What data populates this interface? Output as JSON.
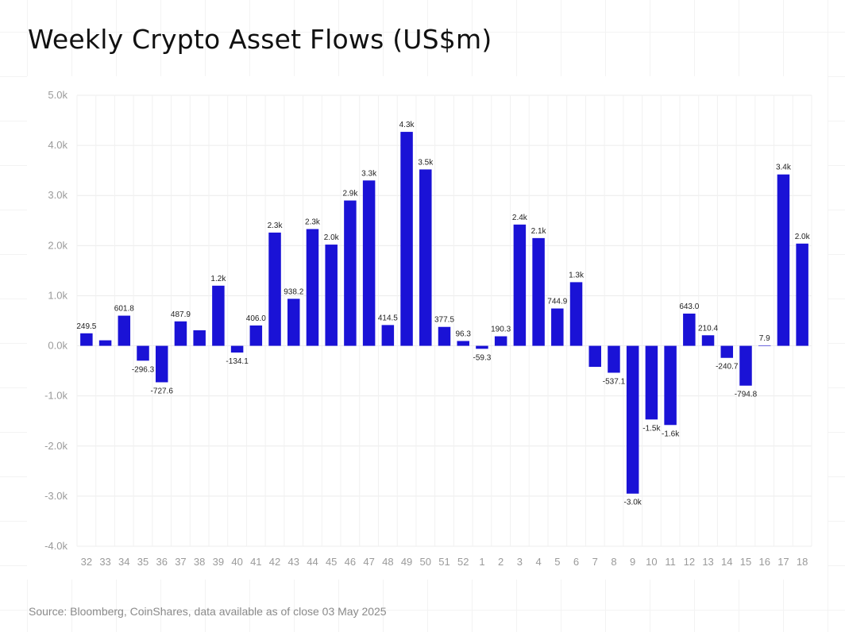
{
  "chart_data": {
    "type": "bar",
    "title": "Weekly Crypto Asset Flows (US$m)",
    "source": "Source: Bloomberg, CoinShares, data available as of close 03 May 2025",
    "categories": [
      "32",
      "33",
      "34",
      "35",
      "36",
      "37",
      "38",
      "39",
      "40",
      "41",
      "42",
      "43",
      "44",
      "45",
      "46",
      "47",
      "48",
      "49",
      "50",
      "51",
      "52",
      "1",
      "2",
      "3",
      "4",
      "5",
      "6",
      "7",
      "8",
      "9",
      "10",
      "11",
      "12",
      "13",
      "14",
      "15",
      "16",
      "17",
      "18"
    ],
    "values": [
      249.5,
      110,
      601.8,
      -296.3,
      -727.6,
      487.9,
      310,
      1200,
      -134.1,
      406.0,
      2260,
      938.2,
      2330,
      2020,
      2900,
      3300,
      414.5,
      4270,
      3520,
      377.5,
      96.3,
      -59.3,
      190.3,
      2420,
      2150,
      744.9,
      1270,
      -420,
      -537.1,
      -2950,
      -1470,
      -1580,
      643.0,
      210.4,
      -240.7,
      -794.8,
      7.9,
      3420,
      2040
    ],
    "data_labels": [
      "249.5",
      "",
      "601.8",
      "-296.3",
      "-727.6",
      "487.9",
      "",
      "1.2k",
      "-134.1",
      "406.0",
      "2.3k",
      "938.2",
      "2.3k",
      "2.0k",
      "2.9k",
      "3.3k",
      "414.5",
      "4.3k",
      "3.5k",
      "377.5",
      "96.3",
      "-59.3",
      "190.3",
      "2.4k",
      "2.1k",
      "744.9",
      "1.3k",
      "",
      "-537.1",
      "-3.0k",
      "-1.5k",
      "-1.6k",
      "643.0",
      "210.4",
      "-240.7",
      "-794.8",
      "7.9",
      "3.4k",
      "2.0k"
    ],
    "ylim": [
      -4000,
      5000
    ],
    "yticks": [
      5000,
      4000,
      3000,
      2000,
      1000,
      0,
      -1000,
      -2000,
      -3000,
      -4000
    ],
    "ytick_labels": [
      "5.0k",
      "4.0k",
      "3.0k",
      "2.0k",
      "1.0k",
      "0.0k",
      "-1.0k",
      "-2.0k",
      "-3.0k",
      "-4.0k"
    ],
    "xlabel": "",
    "ylabel": "",
    "grid": true,
    "legend": "none",
    "bar_color": "#1a12d6"
  }
}
